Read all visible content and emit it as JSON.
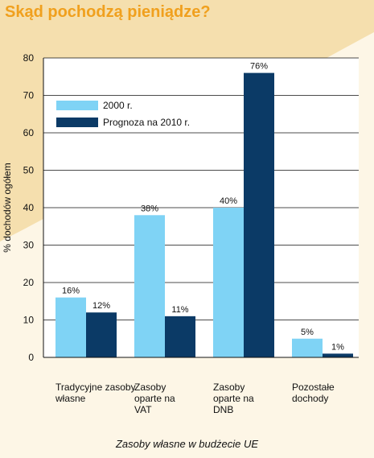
{
  "colors": {
    "background": "#fdf6e6",
    "curve": "#f5dfae",
    "plot_bg": "#ffffff",
    "series_2000": "#7fd3f5",
    "series_2010": "#0b3a66",
    "title": "#f0a01e"
  },
  "chart_data": {
    "type": "bar",
    "title": "Skąd pochodzą pieniądze?",
    "xlabel": "Zasoby własne w budżecie UE",
    "ylabel": "% dochodów ogółem",
    "ylim": [
      0,
      80
    ],
    "yticks": [
      "0",
      "10",
      "20",
      "30",
      "40",
      "50",
      "60",
      "70",
      "80"
    ],
    "categories": [
      "Tradycyjne zasoby\nwłasne",
      "Zasoby\noparte na\nVAT",
      "Zasoby\noparte na\nDNB",
      "Pozostałe\ndochody"
    ],
    "series": [
      {
        "name": "2000 r.",
        "values": [
          16,
          38,
          40,
          5
        ],
        "labels": [
          "16%",
          "38%",
          "40%",
          "5%"
        ]
      },
      {
        "name": "Prognoza na 2010 r.",
        "values": [
          12,
          11,
          76,
          1
        ],
        "labels": [
          "12%",
          "11%",
          "76%",
          "1%"
        ]
      }
    ],
    "legend_position": "top-left",
    "grid": true
  }
}
